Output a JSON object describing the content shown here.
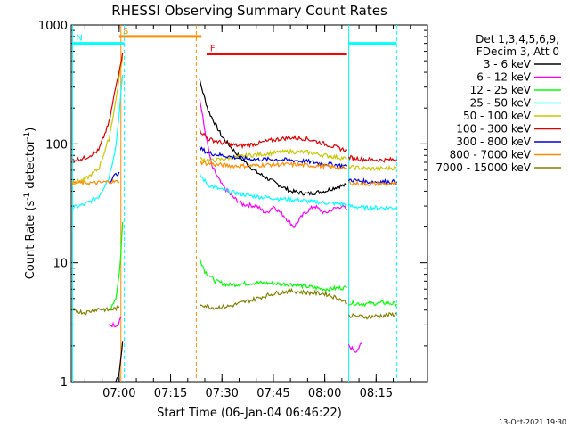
{
  "chart_data": {
    "type": "line",
    "title": "RHESSI Observing Summary Count Rates",
    "xlabel": "Start Time (06-Jan-04 06:46:22)",
    "ylabel": "Count Rate (s",
    "ylabel_sup": "-1",
    "ylabel_tail": " detector",
    "ylabel_close": ")",
    "y_scale": "log",
    "ylim": [
      1,
      1000
    ],
    "y_ticks": [
      {
        "value": 1,
        "label": "1"
      },
      {
        "value": 10,
        "label": "10"
      },
      {
        "value": 100,
        "label": "100"
      },
      {
        "value": 1000,
        "label": "1000"
      }
    ],
    "xlim": [
      "06:46",
      "08:30"
    ],
    "x_ticks": [
      {
        "value": "07:00",
        "label": "07:00"
      },
      {
        "value": "07:15",
        "label": "07:15"
      },
      {
        "value": "07:30",
        "label": "07:30"
      },
      {
        "value": "07:45",
        "label": "07:45"
      },
      {
        "value": "08:00",
        "label": "08:00"
      },
      {
        "value": "08:15",
        "label": "08:15"
      }
    ],
    "legend_header": [
      "Det 1,3,4,5,6,9,",
      "FDecim 3, Att 0"
    ],
    "legend_position": "right",
    "footer": "13-Oct-2021 19:30",
    "series": [
      {
        "name": "3 - 6 keV",
        "color": "#000000",
        "segments": [
          [
            [
              "06:59:00",
              1.0
            ],
            [
              "07:00:00",
              1.2
            ],
            [
              "07:00:30",
              1.6
            ],
            [
              "07:01:00",
              2.2
            ]
          ],
          [
            [
              "07:23:30",
              340
            ],
            [
              "07:26:00",
              190
            ],
            [
              "07:30:00",
              115
            ],
            [
              "07:35:00",
              78
            ],
            [
              "07:40:00",
              58
            ],
            [
              "07:45:00",
              48
            ],
            [
              "07:50:00",
              40
            ],
            [
              "07:55:00",
              38
            ],
            [
              "08:00:00",
              40
            ],
            [
              "08:04:00",
              44
            ],
            [
              "08:06:30",
              45
            ]
          ]
        ]
      },
      {
        "name": "6 - 12 keV",
        "color": "#ff00ff",
        "segments": [
          [
            [
              "06:57:00",
              3.0
            ],
            [
              "06:59:30",
              3.0
            ],
            [
              "07:00:30",
              3.5
            ]
          ],
          [
            [
              "07:23:30",
              240
            ],
            [
              "07:25:00",
              130
            ],
            [
              "07:27:00",
              65
            ],
            [
              "07:30:00",
              45
            ],
            [
              "07:33:00",
              36
            ],
            [
              "07:36:00",
              31
            ],
            [
              "07:40:00",
              30
            ],
            [
              "07:43:00",
              26
            ],
            [
              "07:45:00",
              30
            ],
            [
              "07:48:00",
              25
            ],
            [
              "07:51:00",
              20
            ],
            [
              "07:54:00",
              26
            ],
            [
              "07:57:00",
              30
            ],
            [
              "08:00:00",
              26
            ],
            [
              "08:02:00",
              28
            ],
            [
              "08:05:00",
              30
            ],
            [
              "08:06:30",
              28
            ]
          ],
          [
            [
              "08:07:00",
              2.0
            ],
            [
              "08:09:00",
              1.8
            ],
            [
              "08:11:00",
              2.1
            ]
          ]
        ]
      },
      {
        "name": "12 - 25 keV",
        "color": "#00ff00",
        "segments": [
          [
            [
              "06:57:00",
              4.0
            ],
            [
              "06:59:00",
              5.0
            ],
            [
              "07:00:00",
              8.0
            ],
            [
              "07:00:30",
              12.0
            ],
            [
              "07:01:00",
              22.0
            ]
          ],
          [
            [
              "07:23:30",
              11.0
            ],
            [
              "07:25:00",
              8.5
            ],
            [
              "07:28:00",
              7.0
            ],
            [
              "07:32:00",
              6.5
            ],
            [
              "07:40:00",
              6.8
            ],
            [
              "07:50:00",
              6.6
            ],
            [
              "08:00:00",
              6.0
            ],
            [
              "08:06:30",
              6.2
            ]
          ],
          [
            [
              "08:07:00",
              4.6
            ],
            [
              "08:12:00",
              4.5
            ],
            [
              "08:17:00",
              4.6
            ],
            [
              "08:21:00",
              4.5
            ]
          ]
        ]
      },
      {
        "name": "25 - 50 keV",
        "color": "#00ffff",
        "segments": [
          [
            [
              "06:46:22",
              29
            ],
            [
              "06:50:00",
              31
            ],
            [
              "06:54:00",
              36
            ],
            [
              "06:57:00",
              52
            ],
            [
              "06:59:00",
              95
            ],
            [
              "07:00:00",
              180
            ],
            [
              "07:01:00",
              380
            ]
          ],
          [
            [
              "07:23:30",
              55
            ],
            [
              "07:26:00",
              45
            ],
            [
              "07:30:00",
              41
            ],
            [
              "07:35:00",
              38
            ],
            [
              "07:40:00",
              36
            ],
            [
              "07:45:00",
              35
            ],
            [
              "07:50:00",
              34
            ],
            [
              "07:55:00",
              33
            ],
            [
              "08:00:00",
              32
            ],
            [
              "08:06:30",
              31
            ]
          ],
          [
            [
              "08:07:00",
              30
            ],
            [
              "08:12:00",
              29
            ],
            [
              "08:17:00",
              29
            ],
            [
              "08:21:00",
              29
            ]
          ]
        ]
      },
      {
        "name": "50 - 100 keV",
        "color": "#c8c800",
        "segments": [
          [
            [
              "06:46:22",
              47
            ],
            [
              "06:50:00",
              50
            ],
            [
              "06:54:00",
              62
            ],
            [
              "06:57:00",
              110
            ],
            [
              "06:59:00",
              230
            ],
            [
              "07:00:00",
              360
            ],
            [
              "07:01:00",
              540
            ]
          ],
          [
            [
              "07:23:30",
              75
            ],
            [
              "07:27:00",
              72
            ],
            [
              "07:32:00",
              76
            ],
            [
              "07:38:00",
              80
            ],
            [
              "07:45:00",
              84
            ],
            [
              "07:50:00",
              86
            ],
            [
              "07:55:00",
              85
            ],
            [
              "08:00:00",
              80
            ],
            [
              "08:06:30",
              75
            ]
          ],
          [
            [
              "08:07:00",
              64
            ],
            [
              "08:12:00",
              62
            ],
            [
              "08:17:00",
              62
            ],
            [
              "08:21:00",
              63
            ]
          ]
        ]
      },
      {
        "name": "100 - 300 keV",
        "color": "#e00000",
        "segments": [
          [
            [
              "06:46:22",
              73
            ],
            [
              "06:50:00",
              76
            ],
            [
              "06:54:00",
              88
            ],
            [
              "06:57:00",
              150
            ],
            [
              "06:59:00",
              300
            ],
            [
              "07:00:00",
              420
            ],
            [
              "07:01:00",
              580
            ]
          ],
          [
            [
              "07:23:30",
              130
            ],
            [
              "07:26:00",
              110
            ],
            [
              "07:30:00",
              102
            ],
            [
              "07:35:00",
              96
            ],
            [
              "07:40:00",
              100
            ],
            [
              "07:45:00",
              108
            ],
            [
              "07:50:00",
              113
            ],
            [
              "07:55:00",
              110
            ],
            [
              "08:00:00",
              100
            ],
            [
              "08:04:00",
              92
            ],
            [
              "08:06:30",
              88
            ]
          ],
          [
            [
              "08:07:00",
              77
            ],
            [
              "08:12:00",
              74
            ],
            [
              "08:17:00",
              73
            ],
            [
              "08:21:00",
              74
            ]
          ]
        ]
      },
      {
        "name": "300 - 800 keV",
        "color": "#0000e0",
        "segments": [
          [
            [
              "06:57:00",
              48
            ],
            [
              "06:59:00",
              55
            ],
            [
              "07:00:00",
              58
            ]
          ],
          [
            [
              "07:23:30",
              92
            ],
            [
              "07:26:00",
              84
            ],
            [
              "07:30:00",
              80
            ],
            [
              "07:35:00",
              76
            ],
            [
              "07:40:00",
              74
            ],
            [
              "07:45:00",
              74
            ],
            [
              "07:50:00",
              73
            ],
            [
              "07:55:00",
              71
            ],
            [
              "08:00:00",
              68
            ],
            [
              "08:06:30",
              65
            ]
          ],
          [
            [
              "08:07:00",
              50
            ],
            [
              "08:12:00",
              48
            ],
            [
              "08:17:00",
              48
            ],
            [
              "08:21:00",
              48
            ]
          ]
        ]
      },
      {
        "name": "800 - 7000 keV",
        "color": "#ff8c00",
        "segments": [
          [
            [
              "06:46:22",
              47
            ],
            [
              "06:50:00",
              47
            ],
            [
              "06:54:00",
              47
            ],
            [
              "06:57:00",
              48
            ],
            [
              "07:00:00",
              48
            ]
          ],
          [
            [
              "07:23:30",
              70
            ],
            [
              "07:28:00",
              67
            ],
            [
              "07:35:00",
              65
            ],
            [
              "07:40:00",
              66
            ],
            [
              "07:45:00",
              67
            ],
            [
              "07:50:00",
              67
            ],
            [
              "07:55:00",
              66
            ],
            [
              "08:00:00",
              65
            ],
            [
              "08:06:30",
              62
            ]
          ],
          [
            [
              "08:07:00",
              47
            ],
            [
              "08:12:00",
              46
            ],
            [
              "08:17:00",
              46
            ],
            [
              "08:21:00",
              46
            ]
          ]
        ]
      },
      {
        "name": "7000 - 15000 keV",
        "color": "#808000",
        "segments": [
          [
            [
              "06:46:22",
              4.0
            ],
            [
              "06:50:00",
              3.8
            ],
            [
              "06:54:00",
              4.1
            ],
            [
              "06:57:00",
              4.0
            ],
            [
              "07:00:00",
              4.2
            ]
          ],
          [
            [
              "07:23:30",
              4.5
            ],
            [
              "07:27:00",
              4.2
            ],
            [
              "07:32:00",
              4.3
            ],
            [
              "07:38:00",
              4.8
            ],
            [
              "07:45:00",
              5.5
            ],
            [
              "07:50:00",
              5.8
            ],
            [
              "07:55:00",
              5.6
            ],
            [
              "08:00:00",
              5.5
            ],
            [
              "08:04:00",
              5.0
            ],
            [
              "08:06:30",
              4.6
            ]
          ],
          [
            [
              "08:07:00",
              3.6
            ],
            [
              "08:12:00",
              3.5
            ],
            [
              "08:17:00",
              3.6
            ],
            [
              "08:21:00",
              3.7
            ]
          ]
        ]
      }
    ],
    "annotations": [
      {
        "label": "S",
        "color": "#ff8c00",
        "bar": [
          "07:00:00",
          "07:24:00"
        ],
        "level": 800
      },
      {
        "label": "N",
        "color": "#00ffff",
        "bar": [
          "06:46:22",
          "07:01:30"
        ],
        "level": 700
      },
      {
        "label": "F",
        "color": "#ff0000",
        "bar": [
          "07:25:30",
          "08:06:30"
        ],
        "level": 570
      },
      {
        "label": "",
        "color": "#00ffff",
        "bar": [
          "08:07:00",
          "08:21:00"
        ],
        "level": 700
      }
    ],
    "vertical_markers": [
      {
        "time": "06:46:22",
        "color": "#00ffff",
        "style": "solid"
      },
      {
        "time": "07:00:30",
        "color": "#ff8c00",
        "style": "solid"
      },
      {
        "time": "07:01:30",
        "color": "#00ffff",
        "style": "dashed"
      },
      {
        "time": "07:22:30",
        "color": "#ff8c00",
        "style": "dashed"
      },
      {
        "time": "08:07:00",
        "color": "#00ffff",
        "style": "solid"
      },
      {
        "time": "08:21:00",
        "color": "#00ffff",
        "style": "dashed"
      }
    ]
  }
}
